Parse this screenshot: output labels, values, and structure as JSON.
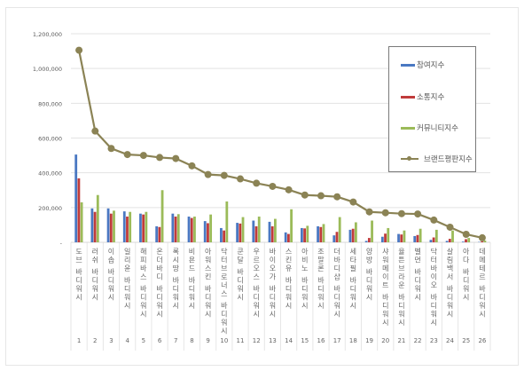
{
  "chart_data": {
    "type": "bar",
    "title": "",
    "xlabel": "",
    "ylabel": "",
    "ylim": [
      0,
      1200000
    ],
    "yticks": [
      "-",
      "200,000",
      "400,000",
      "600,000",
      "800,000",
      "1,000,000",
      "1,200,000"
    ],
    "grid": true,
    "legend_position": "upper right (inside)",
    "ranks": [
      "1",
      "2",
      "3",
      "4",
      "5",
      "6",
      "7",
      "8",
      "9",
      "10",
      "11",
      "12",
      "13",
      "14",
      "15",
      "16",
      "17",
      "18",
      "19",
      "20",
      "21",
      "22",
      "23",
      "24",
      "25",
      "26"
    ],
    "categories": [
      "도브 바디워시",
      "러쉬 바디워시",
      "이솝 바디워시",
      "일리윤 바디워시",
      "해피바스 바디워시",
      "온더바디 바디워시",
      "록시땅 바디워시",
      "비욘드 바디워시",
      "아워스킨 바디워시",
      "닥터브로너스 바디워시",
      "쿤달 바디워시",
      "우르오스 바디워시",
      "바이오가 바디워시",
      "스킨유 바디워시",
      "아비노 바디워시",
      "조말론 바디워시",
      "더바디샵 바디워시",
      "세타필 바디워시",
      "양방 바디워시",
      "샤워메이트 바디워시",
      "율튼브라운 바디워시",
      "벨먼 바디워시",
      "닥터바이오 바디워시",
      "살림백서 바디워시",
      "아다 바디워시",
      "데메테르 바디워시"
    ],
    "series": [
      {
        "name": "참여지수",
        "color": "#4a78c2",
        "type": "bar",
        "values": [
          505000,
          195000,
          195000,
          178000,
          165000,
          92000,
          165000,
          148000,
          122000,
          82000,
          112000,
          125000,
          118000,
          57000,
          82000,
          92000,
          40000,
          72000,
          8000,
          32000,
          48000,
          36000,
          14000,
          8000,
          4000,
          2000
        ]
      },
      {
        "name": "소통지수",
        "color": "#c03b3b",
        "type": "bar",
        "values": [
          368000,
          175000,
          165000,
          148000,
          160000,
          88000,
          148000,
          140000,
          110000,
          68000,
          108000,
          92000,
          92000,
          48000,
          80000,
          88000,
          60000,
          78000,
          25000,
          50000,
          45000,
          42000,
          28000,
          20000,
          18000,
          6000
        ]
      },
      {
        "name": "커뮤니티지수",
        "color": "#9bbb59",
        "type": "bar",
        "values": [
          230000,
          272000,
          182000,
          175000,
          175000,
          300000,
          162000,
          148000,
          160000,
          235000,
          145000,
          148000,
          135000,
          190000,
          95000,
          105000,
          145000,
          115000,
          125000,
          82000,
          68000,
          78000,
          72000,
          68000,
          25000,
          10000
        ]
      },
      {
        "name": "브랜드평판지수",
        "color": "#8b8355",
        "type": "line",
        "values": [
          1105000,
          640000,
          540000,
          505000,
          500000,
          488000,
          482000,
          440000,
          390000,
          385000,
          365000,
          340000,
          322000,
          302000,
          272000,
          268000,
          262000,
          232000,
          175000,
          170000,
          165000,
          163000,
          128000,
          87000,
          46000,
          26000
        ]
      }
    ]
  },
  "legend": {
    "items": [
      "참여지수",
      "소통지수",
      "커뮤니티지수",
      "브랜드평판지수"
    ]
  }
}
